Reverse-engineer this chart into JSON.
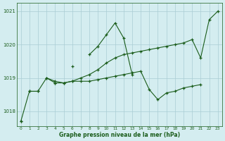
{
  "xlabel": "Graphe pression niveau de la mer (hPa)",
  "background_color": "#d4edf0",
  "grid_color": "#aacdd4",
  "line_color": "#1a5c1a",
  "hours": [
    0,
    1,
    2,
    3,
    4,
    5,
    6,
    7,
    8,
    9,
    10,
    11,
    12,
    13,
    14,
    15,
    16,
    17,
    18,
    19,
    20,
    21,
    22,
    23
  ],
  "series1": [
    1017.7,
    null,
    null,
    1019.0,
    1018.85,
    null,
    1019.35,
    null,
    1019.7,
    1019.95,
    1020.3,
    1020.65,
    1020.2,
    1019.1,
    null,
    null,
    null,
    null,
    null,
    null,
    null,
    null,
    null,
    null
  ],
  "series2": [
    1017.7,
    1018.6,
    1018.6,
    1019.0,
    1018.9,
    1018.85,
    1018.9,
    1019.0,
    1019.1,
    1019.25,
    1019.45,
    1019.6,
    1019.7,
    1019.75,
    1019.8,
    1019.85,
    1019.9,
    1019.95,
    1020.0,
    1020.05,
    1020.15,
    1019.6,
    1020.75,
    1021.0
  ],
  "series3": [
    null,
    1018.6,
    1018.6,
    null,
    1018.85,
    1018.85,
    1018.9,
    1018.9,
    1018.9,
    1018.95,
    1019.0,
    1019.05,
    1019.1,
    1019.15,
    1019.2,
    1018.65,
    1018.35,
    1018.55,
    1018.6,
    1018.7,
    1018.75,
    1018.8,
    null,
    null
  ],
  "ylim": [
    1017.55,
    1021.25
  ],
  "yticks": [
    1018,
    1019,
    1020,
    1021
  ],
  "xticks": [
    0,
    1,
    2,
    3,
    4,
    5,
    6,
    7,
    8,
    9,
    10,
    11,
    12,
    13,
    14,
    15,
    16,
    17,
    18,
    19,
    20,
    21,
    22,
    23
  ]
}
